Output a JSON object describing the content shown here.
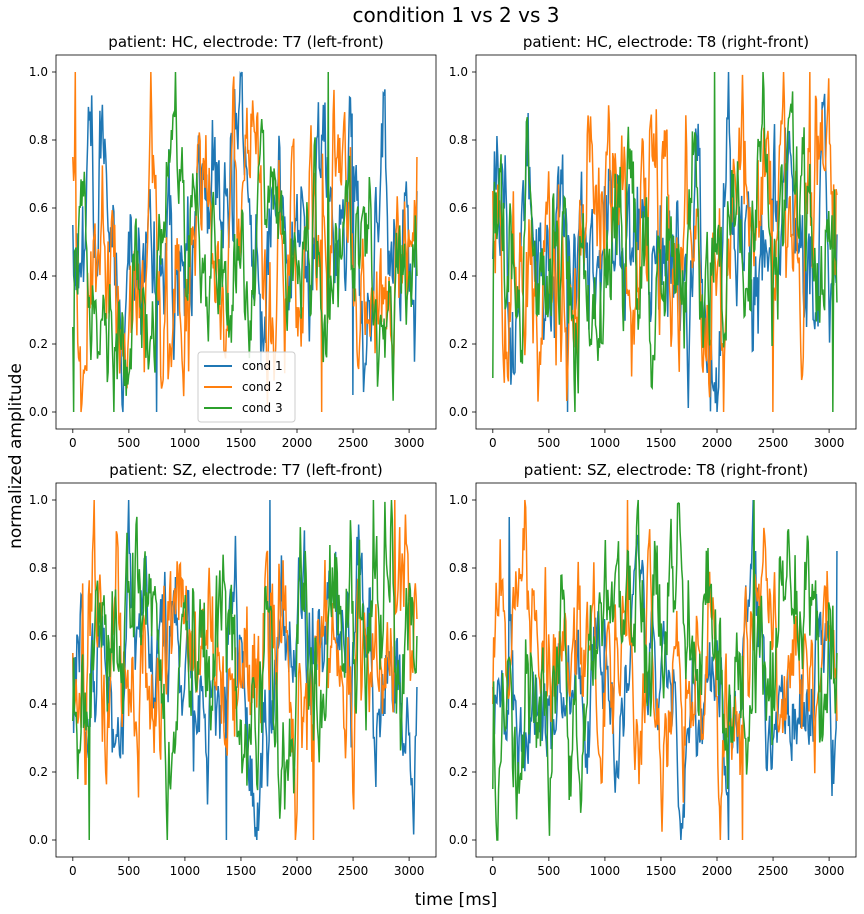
{
  "suptitle": "condition 1 vs 2 vs 3",
  "xlabel": "time [ms]",
  "ylabel": "normalized amplitude",
  "colors": {
    "cond 1": "#1f77b4",
    "cond 2": "#ff7f0e",
    "cond 3": "#2ca02c"
  },
  "chart_data": [
    {
      "type": "line",
      "title": "patient: HC, electrode: T7 (left-front)",
      "xlim": [
        -150,
        3240
      ],
      "ylim": [
        -0.05,
        1.05
      ],
      "xticks": [
        0,
        500,
        1000,
        1500,
        2000,
        2500,
        3000
      ],
      "yticks": [
        0.0,
        0.2,
        0.4,
        0.6,
        0.8,
        1.0
      ],
      "legend": {
        "placement": "lower-center",
        "entries": [
          "cond 1",
          "cond 2",
          "cond 3"
        ]
      },
      "series": [
        {
          "name": "cond 1",
          "x_start": 0,
          "x_end": 3070,
          "mean": 0.5,
          "volatility": 0.3,
          "anchors": [
            [
              0,
              0.55
            ],
            [
              750,
              0.0
            ],
            [
              1440,
              0.95
            ],
            [
              2500,
              0.05
            ]
          ]
        },
        {
          "name": "cond 2",
          "x_start": 0,
          "x_end": 3070,
          "mean": 0.58,
          "volatility": 0.22,
          "anchors": [
            [
              0,
              0.75
            ],
            [
              20,
              1.0
            ],
            [
              2220,
              0.0
            ],
            [
              3070,
              0.75
            ]
          ]
        },
        {
          "name": "cond 3",
          "x_start": 0,
          "x_end": 3070,
          "mean": 0.55,
          "volatility": 0.2,
          "anchors": [
            [
              0,
              0.25
            ],
            [
              10,
              0.0
            ],
            [
              2280,
              1.0
            ],
            [
              3070,
              0.4
            ]
          ]
        }
      ]
    },
    {
      "type": "line",
      "title": "patient: HC, electrode: T8 (right-front)",
      "xlim": [
        -150,
        3240
      ],
      "ylim": [
        -0.05,
        1.05
      ],
      "xticks": [
        0,
        500,
        1000,
        1500,
        2000,
        2500,
        3000
      ],
      "yticks": [
        0.0,
        0.2,
        0.4,
        0.6,
        0.8,
        1.0
      ],
      "series": [
        {
          "name": "cond 1",
          "x_start": 0,
          "x_end": 3070,
          "mean": 0.45,
          "volatility": 0.26,
          "anchors": [
            [
              0,
              0.45
            ],
            [
              670,
              0.0
            ],
            [
              2800,
              0.25
            ]
          ]
        },
        {
          "name": "cond 2",
          "x_start": 0,
          "x_end": 3070,
          "mean": 0.58,
          "volatility": 0.22,
          "anchors": [
            [
              0,
              0.65
            ],
            [
              2500,
              0.0
            ],
            [
              2830,
              1.0
            ]
          ]
        },
        {
          "name": "cond 3",
          "x_start": 0,
          "x_end": 3070,
          "mean": 0.58,
          "volatility": 0.22,
          "anchors": [
            [
              0,
              0.1
            ],
            [
              1980,
              1.0
            ],
            [
              3030,
              0.0
            ]
          ]
        }
      ]
    },
    {
      "type": "line",
      "title": "patient: SZ, electrode: T7 (left-front)",
      "xlim": [
        -150,
        3240
      ],
      "ylim": [
        -0.05,
        1.05
      ],
      "xticks": [
        0,
        500,
        1000,
        1500,
        2000,
        2500,
        3000
      ],
      "yticks": [
        0.0,
        0.2,
        0.4,
        0.6,
        0.8,
        1.0
      ],
      "series": [
        {
          "name": "cond 1",
          "x_start": 0,
          "x_end": 3070,
          "mean": 0.58,
          "volatility": 0.18,
          "anchors": [
            [
              0,
              0.55
            ],
            [
              1370,
              0.0
            ],
            [
              1760,
              1.0
            ],
            [
              3070,
              0.45
            ]
          ]
        },
        {
          "name": "cond 2",
          "x_start": 0,
          "x_end": 3070,
          "mean": 0.48,
          "volatility": 0.24,
          "anchors": [
            [
              0,
              0.55
            ],
            [
              2150,
              0.0
            ],
            [
              2870,
              1.0
            ],
            [
              3070,
              0.65
            ]
          ]
        },
        {
          "name": "cond 3",
          "x_start": 0,
          "x_end": 3070,
          "mean": 0.4,
          "volatility": 0.22,
          "anchors": [
            [
              0,
              0.35
            ],
            [
              150,
              0.0
            ],
            [
              2680,
              1.0
            ],
            [
              3070,
              0.6
            ]
          ]
        }
      ]
    },
    {
      "type": "line",
      "title": "patient: SZ, electrode: T8 (right-front)",
      "xlim": [
        -150,
        3240
      ],
      "ylim": [
        -0.05,
        1.05
      ],
      "xticks": [
        0,
        500,
        1000,
        1500,
        2000,
        2500,
        3000
      ],
      "yticks": [
        0.0,
        0.2,
        0.4,
        0.6,
        0.8,
        1.0
      ],
      "series": [
        {
          "name": "cond 1",
          "x_start": 0,
          "x_end": 3070,
          "mean": 0.55,
          "volatility": 0.2,
          "anchors": [
            [
              0,
              0.45
            ],
            [
              150,
              0.95
            ],
            [
              1000,
              0.65
            ],
            [
              2100,
              0.0
            ],
            [
              3070,
              0.85
            ]
          ]
        },
        {
          "name": "cond 2",
          "x_start": 0,
          "x_end": 3070,
          "mean": 0.55,
          "volatility": 0.2,
          "anchors": [
            [
              0,
              0.4
            ],
            [
              1200,
              1.0
            ],
            [
              2230,
              0.0
            ],
            [
              3070,
              0.35
            ]
          ]
        },
        {
          "name": "cond 3",
          "x_start": 0,
          "x_end": 3070,
          "mean": 0.4,
          "volatility": 0.2,
          "anchors": [
            [
              0,
              0.15
            ],
            [
              40,
              0.0
            ],
            [
              2330,
              1.0
            ],
            [
              3070,
              0.55
            ]
          ]
        }
      ]
    }
  ]
}
